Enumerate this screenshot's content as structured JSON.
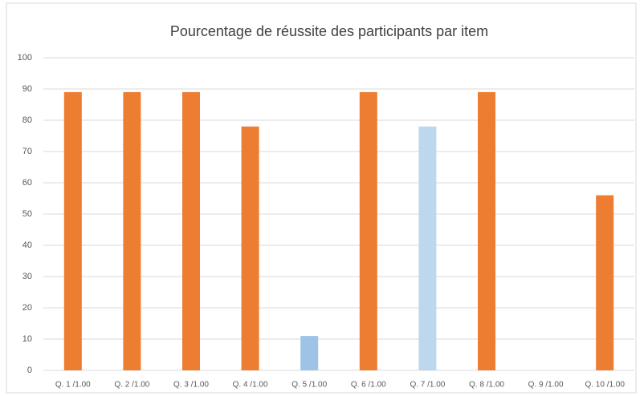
{
  "chart_data": {
    "type": "bar",
    "title": "Pourcentage de réussite des participants par item",
    "categories": [
      "Q. 1 /1.00",
      "Q. 2 /1.00",
      "Q. 3 /1.00",
      "Q. 4 /1.00",
      "Q. 5 /1.00",
      "Q. 6 /1.00",
      "Q. 7 /1.00",
      "Q. 8 /1.00",
      "Q. 9 /1.00",
      "Q. 10 /1.00"
    ],
    "values": [
      89,
      89,
      89,
      78,
      11,
      89,
      78,
      89,
      0,
      56
    ],
    "colors": [
      "#ed7d31",
      "#ed7d31",
      "#ed7d31",
      "#ed7d31",
      "#9dc3e6",
      "#ed7d31",
      "#bdd7ee",
      "#ed7d31",
      "#ed7d31",
      "#ed7d31"
    ],
    "ylim": [
      0,
      100
    ],
    "yticks": [
      0,
      10,
      20,
      30,
      40,
      50,
      60,
      70,
      80,
      90,
      100
    ],
    "grid": true
  }
}
